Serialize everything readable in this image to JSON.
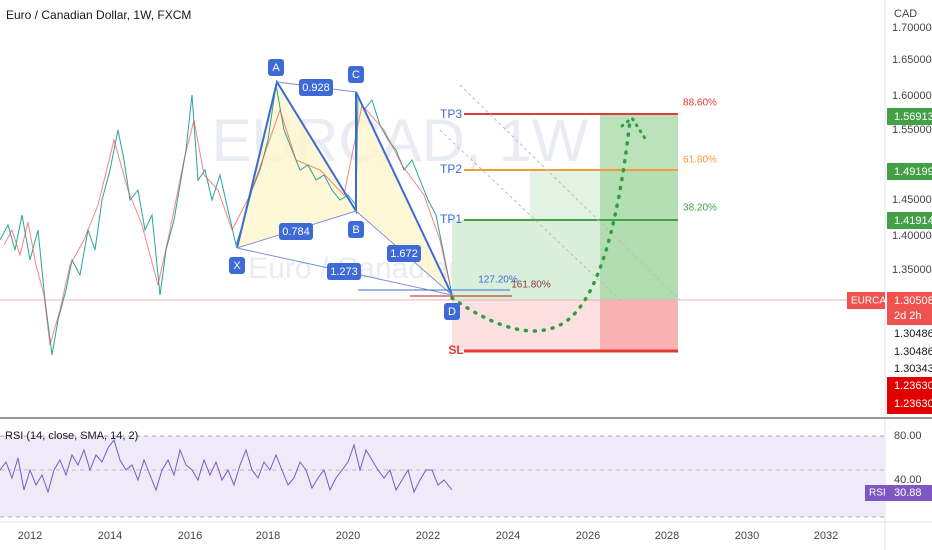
{
  "header": {
    "title": "Euro / Canadian Dollar, 1W, FXCM",
    "currency": "CAD"
  },
  "watermark": {
    "symbol": "EURCAD, 1W",
    "name": "Euro / Canadian Dollar"
  },
  "price_axis": [
    "1.70000",
    "1.65000",
    "1.60000",
    "1.55000",
    "1.45000",
    "1.40000",
    "1.35000"
  ],
  "price_tags": {
    "tp3": "1.56913",
    "tp2": "1.49199",
    "tp1": "1.41914",
    "symbol": "EURCAD",
    "last": "1.30508",
    "countdown": "2d 2h",
    "p1": "1.30486",
    "p2": "1.30486",
    "p3": "1.30343",
    "sl1": "1.23630",
    "sl2": "1.23630"
  },
  "pattern": {
    "points": [
      "X",
      "A",
      "B",
      "C",
      "D"
    ],
    "ratios": [
      "0.928",
      "0.784",
      "1.672",
      "1.273"
    ],
    "fib_d": [
      "127.20%",
      "161.80%"
    ]
  },
  "levels": {
    "tp3": "TP3",
    "tp2": "TP2",
    "tp1": "TP1",
    "sl": "SL",
    "fib3": "88.60%",
    "fib2": "61.80%",
    "fib1": "38.20%"
  },
  "rsi": {
    "title": "RSI (14, close, SMA, 14, 2)",
    "axis": [
      "80.00",
      "40.00"
    ],
    "tag": "RSI",
    "value": "30.88"
  },
  "time_axis": [
    "2012",
    "2014",
    "2016",
    "2018",
    "2020",
    "2022",
    "2024",
    "2026",
    "2028",
    "2030",
    "2032"
  ]
}
